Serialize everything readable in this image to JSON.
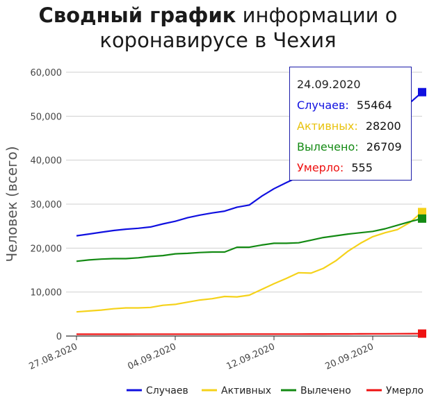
{
  "title": {
    "bold": "Сводный график",
    "rest_line1": "информации о",
    "line2": "коронавирусе в Чехия"
  },
  "chart_data": {
    "type": "line",
    "ylabel": "Человек (всего)",
    "xlabel": "",
    "ylim": [
      0,
      60000
    ],
    "yticks": [
      "0",
      "10,000",
      "20,000",
      "30,000",
      "40,000",
      "50,000",
      "60,000"
    ],
    "xticks": [
      {
        "label": "27.08.2020",
        "day": 0
      },
      {
        "label": "04.09.2020",
        "day": 8
      },
      {
        "label": "12.09.2020",
        "day": 16
      },
      {
        "label": "20.09.2020",
        "day": 24
      }
    ],
    "x": [
      "27.08.2020",
      "28.08.2020",
      "29.08.2020",
      "30.08.2020",
      "31.08.2020",
      "01.09.2020",
      "02.09.2020",
      "03.09.2020",
      "04.09.2020",
      "05.09.2020",
      "06.09.2020",
      "07.09.2020",
      "08.09.2020",
      "09.09.2020",
      "10.09.2020",
      "11.09.2020",
      "12.09.2020",
      "13.09.2020",
      "14.09.2020",
      "15.09.2020",
      "16.09.2020",
      "17.09.2020",
      "18.09.2020",
      "19.09.2020",
      "20.09.2020",
      "21.09.2020",
      "22.09.2020",
      "23.09.2020",
      "24.09.2020"
    ],
    "series": [
      {
        "name": "Случаев",
        "color": "#1010e0",
        "values": [
          22800,
          23200,
          23600,
          24000,
          24300,
          24500,
          24800,
          25500,
          26100,
          26900,
          27500,
          28000,
          28400,
          29300,
          29800,
          31800,
          33500,
          34900,
          36200,
          37700,
          39300,
          40900,
          42500,
          44300,
          46300,
          48400,
          50500,
          53000,
          55464
        ]
      },
      {
        "name": "Активных",
        "color": "#f5d21a",
        "values": [
          5500,
          5700,
          5900,
          6200,
          6400,
          6400,
          6500,
          7000,
          7200,
          7700,
          8200,
          8500,
          9000,
          8900,
          9300,
          10600,
          11900,
          13100,
          14400,
          14300,
          15400,
          17100,
          19300,
          21100,
          22600,
          23500,
          24200,
          25800,
          28200
        ]
      },
      {
        "name": "Вылечено",
        "color": "#138a13",
        "values": [
          17000,
          17300,
          17500,
          17600,
          17600,
          17800,
          18100,
          18300,
          18700,
          18800,
          19000,
          19100,
          19100,
          20200,
          20200,
          20700,
          21100,
          21100,
          21200,
          21800,
          22400,
          22800,
          23200,
          23500,
          23800,
          24400,
          25200,
          26000,
          26709
        ]
      },
      {
        "name": "Умерло",
        "color": "#ee1111",
        "values": [
          410,
          411,
          412,
          414,
          417,
          419,
          421,
          424,
          426,
          427,
          429,
          430,
          433,
          436,
          438,
          441,
          444,
          446,
          449,
          453,
          459,
          466,
          475,
          489,
          500,
          511,
          527,
          542,
          555
        ]
      }
    ],
    "legend_position": "bottom-right",
    "grid": true,
    "tooltip": {
      "date": "24.09.2020",
      "rows": [
        {
          "label": "Случаев:",
          "value": "55464",
          "color": "#1010e0"
        },
        {
          "label": "Активных:",
          "value": "28200",
          "color": "#f5d21a"
        },
        {
          "label": "Вылечено:",
          "value": "26709",
          "color": "#138a13"
        },
        {
          "label": "Умерло:",
          "value": "555",
          "color": "#ee1111"
        }
      ]
    }
  }
}
